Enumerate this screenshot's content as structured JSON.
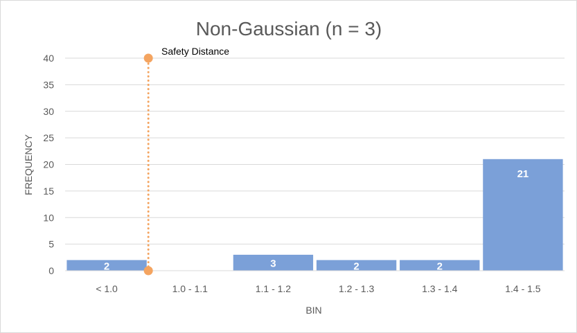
{
  "chart_data": {
    "type": "bar",
    "title": "Non-Gaussian (n = 3)",
    "xlabel": "BIN",
    "ylabel": "FREQUENCY",
    "categories": [
      "< 1.0",
      "1.0 - 1.1",
      "1.1 - 1.2",
      "1.2 - 1.3",
      "1.3 - 1.4",
      "1.4 - 1.5"
    ],
    "values": [
      2,
      0,
      3,
      2,
      2,
      21
    ],
    "data_labels": [
      "2",
      "",
      "3",
      "2",
      "2",
      "21"
    ],
    "ylim": [
      0,
      40
    ],
    "yticks": [
      "0",
      "5",
      "10",
      "15",
      "20",
      "25",
      "30",
      "35",
      "40"
    ],
    "grid": true,
    "bar_color": "#7ba0d8",
    "reference_line": {
      "label": "Safety Distance",
      "x": 1.0,
      "y_range": [
        0,
        40
      ],
      "color": "#f4a460",
      "style": "dotted"
    }
  }
}
